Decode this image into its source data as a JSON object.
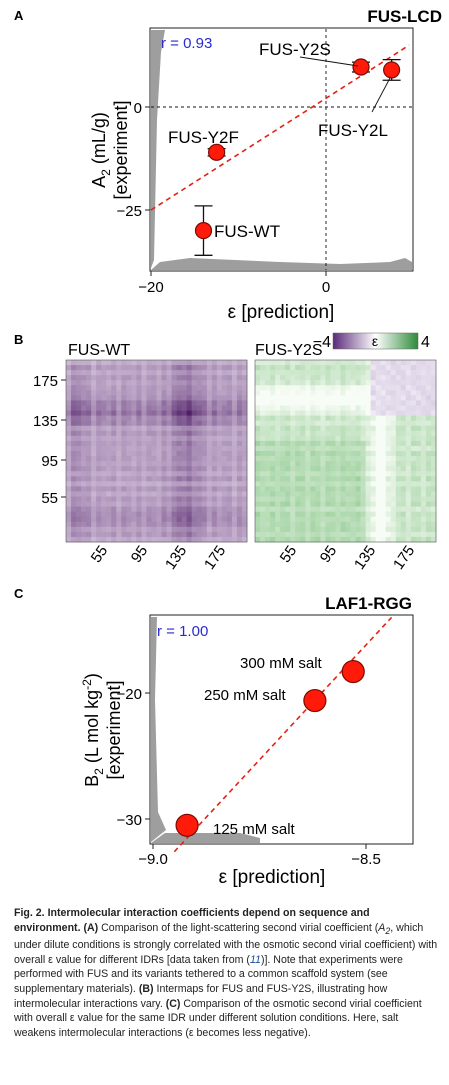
{
  "panel_a": {
    "letter": "A",
    "title": "FUS-LCD",
    "r_label": "r = 0.93",
    "ylabel_line1": "A",
    "ylabel_sub": "2",
    "ylabel_unit": " (mL/g)",
    "ylabel_line2": "[experiment]",
    "xlabel": "ε [prediction]"
  },
  "panel_b": {
    "letter": "B",
    "left_title": "FUS-WT",
    "right_title": "FUS-Y2S",
    "colorbar_min": "−4",
    "colorbar_symbol": "ε",
    "colorbar_max": "4"
  },
  "panel_c": {
    "letter": "C",
    "title": "LAF1-RGG",
    "r_label": "r = 1.00",
    "ylabel_b": "B",
    "ylabel_sub": "2",
    "ylabel_unit": " (L mol kg",
    "ylabel_sup": "-2",
    "ylabel_close": ")",
    "ylabel_line2": "[experiment]",
    "xlabel": "ε [prediction]"
  },
  "chart_data": [
    {
      "type": "scatter",
      "title": "FUS-LCD",
      "xlabel": "ε [prediction]",
      "ylabel": "A2 (mL/g) [experiment]",
      "xlim": [
        -20,
        10
      ],
      "ylim": [
        -36,
        15
      ],
      "x_ticks": [
        -20,
        0
      ],
      "y_ticks": [
        0,
        -25
      ],
      "x_tick_labels": [
        "−20",
        "0"
      ],
      "y_tick_labels": [
        "0",
        "−25"
      ],
      "annotation": "r = 0.93",
      "points": [
        {
          "label": "FUS-Y2S",
          "x": 4,
          "y": 9.7,
          "err": 1.2
        },
        {
          "label": "FUS-Y2L",
          "x": 7.5,
          "y": 9,
          "err": 2.5
        },
        {
          "label": "FUS-Y2F",
          "x": -12.5,
          "y": -11,
          "err": 0.9
        },
        {
          "label": "FUS-WT",
          "x": -14,
          "y": -30,
          "err": 6
        }
      ],
      "fit_line": [
        [
          -20,
          -25
        ],
        [
          9.5,
          15
        ]
      ]
    },
    {
      "type": "heatmap",
      "title": "FUS-WT",
      "x_tick_labels": [
        "55",
        "95",
        "135",
        "175"
      ],
      "y_tick_labels": [
        "175",
        "135",
        "95",
        "55"
      ],
      "colorbar": {
        "min": -4,
        "max": 4,
        "label": "ε",
        "low_color": "#5a2a7a",
        "high_color": "#2e8b3a"
      }
    },
    {
      "type": "heatmap",
      "title": "FUS-Y2S",
      "x_tick_labels": [
        "55",
        "95",
        "135",
        "175"
      ]
    },
    {
      "type": "scatter",
      "title": "LAF1-RGG",
      "xlabel": "ε [prediction]",
      "ylabel": "B2 (L mol kg-2) [experiment]",
      "xlim": [
        -9.0,
        -8.43
      ],
      "ylim": [
        -32.6,
        -14
      ],
      "x_ticks": [
        -9.0,
        -8.5
      ],
      "y_ticks": [
        -20,
        -30
      ],
      "x_tick_labels": [
        "−9.0",
        "−8.5"
      ],
      "y_tick_labels": [
        "−20",
        "−30"
      ],
      "annotation": "r = 1.00",
      "points": [
        {
          "label": "300 mM salt",
          "x": -8.53,
          "y": -18.3
        },
        {
          "label": "250 mM salt",
          "x": -8.62,
          "y": -20.6
        },
        {
          "label": "125 mM salt",
          "x": -8.92,
          "y": -30.5
        }
      ],
      "fit_line": [
        [
          -8.95,
          -32.6
        ],
        [
          -8.44,
          -14
        ]
      ]
    }
  ],
  "caption": {
    "fig_label": "Fig. 2.",
    "heading": "Intermolecular interaction coefficients depend on sequence and environment.",
    "part_a_label": "(A)",
    "part_a_1": "Comparison of the light-scattering second virial coefficient (",
    "part_a_sym": "A",
    "part_a_sub": "2",
    "part_a_2": ", which under dilute conditions is strongly correlated with the osmotic second virial coefficient) with overall ε value for different IDRs [data taken from (",
    "part_a_cite": "11",
    "part_a_3": ")]. Note that experiments were performed with FUS and its variants tethered to a common scaffold system (see supplementary materials).",
    "part_b_label": "(B)",
    "part_b": "Intermaps for FUS and FUS-Y2S, illustrating how intermolecular interactions vary.",
    "part_c_label": "(C)",
    "part_c": "Comparison of the osmotic second virial coefficient with overall ε value for the same IDR under different solution conditions. Here, salt weakens intermolecular interactions (ε becomes less negative)."
  }
}
